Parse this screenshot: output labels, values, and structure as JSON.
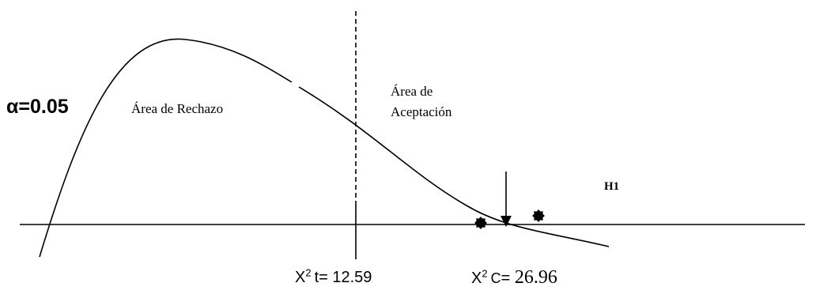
{
  "alpha_label": "α=0.05",
  "rejection_area": {
    "text": "Área de Rechazo"
  },
  "acceptance_area": {
    "line1": "Área de",
    "line2": "Aceptación"
  },
  "hypothesis_label": "H1",
  "critical_value": {
    "symbol": "X",
    "power": "2",
    "sub": "t",
    "eq": "= 12.59"
  },
  "calculated_value": {
    "symbol": "X",
    "power": "2",
    "sub": "C",
    "eq": "= ",
    "number": "26.96"
  },
  "colors": {
    "ink": "#000000",
    "background": "#ffffff"
  },
  "icons": [
    "down-arrow-icon",
    "burst-star-icon"
  ]
}
